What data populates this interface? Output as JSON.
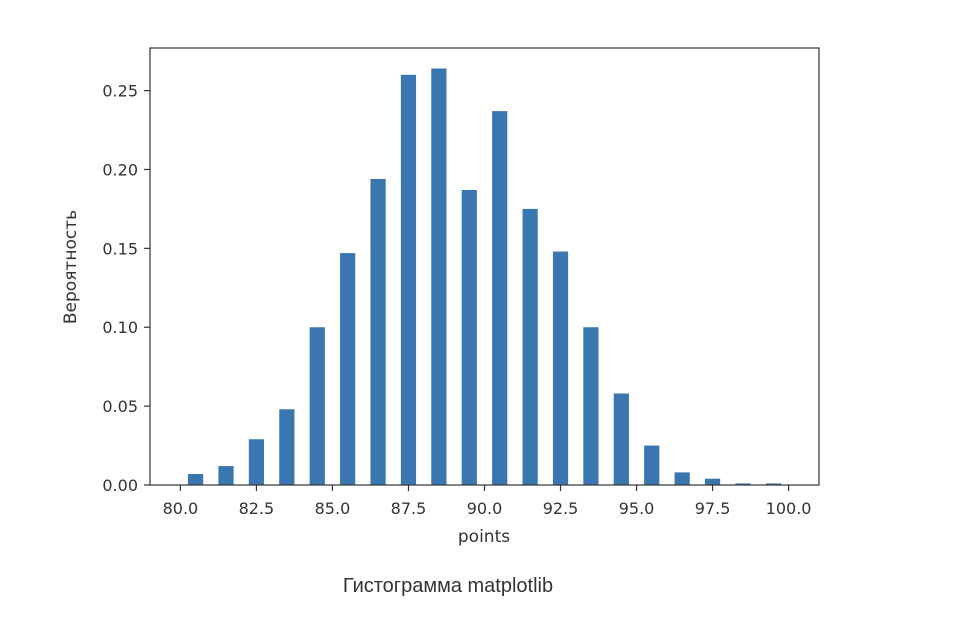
{
  "caption": "Гистограмма matplotlib",
  "colors": {
    "bar": "#3a76b0",
    "axis": "#333333",
    "text": "#333333",
    "background": "#ffffff"
  },
  "chart_data": {
    "type": "bar",
    "xlabel": "points",
    "ylabel": "Вероятность",
    "xlim": [
      79.0,
      101.0
    ],
    "ylim": [
      0.0,
      0.277
    ],
    "grid": false,
    "x": [
      80.5,
      81.5,
      82.5,
      83.5,
      84.5,
      85.5,
      86.5,
      87.5,
      88.5,
      89.5,
      90.5,
      91.5,
      92.5,
      93.5,
      94.5,
      95.5,
      96.5,
      97.5,
      98.5,
      99.5
    ],
    "values": [
      0.007,
      0.012,
      0.029,
      0.048,
      0.1,
      0.147,
      0.194,
      0.26,
      0.264,
      0.187,
      0.237,
      0.175,
      0.148,
      0.1,
      0.058,
      0.025,
      0.008,
      0.004,
      0.001,
      0.001
    ],
    "bar_width": 0.5,
    "x_ticks": [
      80.0,
      82.5,
      85.0,
      87.5,
      90.0,
      92.5,
      95.0,
      97.5,
      100.0
    ],
    "x_tick_labels": [
      "80.0",
      "82.5",
      "85.0",
      "87.5",
      "90.0",
      "92.5",
      "95.0",
      "97.5",
      "100.0"
    ],
    "y_ticks": [
      0.0,
      0.05,
      0.1,
      0.15,
      0.2,
      0.25
    ],
    "y_tick_labels": [
      "0.00",
      "0.05",
      "0.10",
      "0.15",
      "0.20",
      "0.25"
    ]
  }
}
